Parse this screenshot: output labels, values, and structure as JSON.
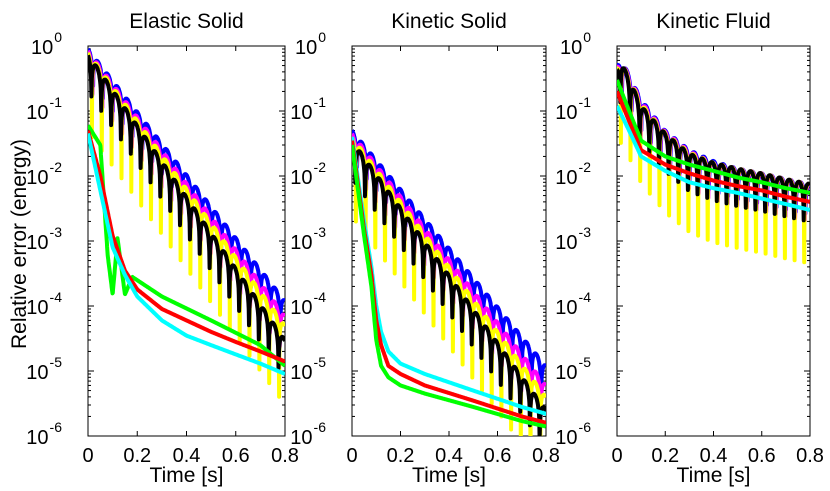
{
  "figure": {
    "ylabel": "Relative error (energy)",
    "xlabel": "Time [s]"
  },
  "chart_data": [
    {
      "type": "line",
      "title": "Elastic Solid",
      "xlabel": "Time [s]",
      "ylabel": "Relative error (energy)",
      "xlim": [
        0,
        0.8
      ],
      "ylim": [
        1e-06,
        1
      ],
      "yscale": "log",
      "xticks": [
        "0",
        "0.2",
        "0.4",
        "0.6",
        "0.8"
      ],
      "ytick_exponents": [
        "0",
        "-1",
        "-2",
        "-3",
        "-4",
        "-5",
        "-6"
      ],
      "grid": false,
      "series": [
        {
          "color": "#0000ff",
          "x": [
            0,
            0.8
          ],
          "y": [
            0.9,
            0.00012
          ],
          "oscillating": true
        },
        {
          "color": "#ff00ff",
          "x": [
            0,
            0.8
          ],
          "y": [
            0.85,
            7e-05
          ],
          "oscillating": true
        },
        {
          "color": "#ffff00",
          "x": [
            0,
            0.8
          ],
          "y": [
            0.8,
            5e-05
          ],
          "oscillating": true
        },
        {
          "color": "#000000",
          "x": [
            0,
            0.8
          ],
          "y": [
            0.75,
            3e-05
          ],
          "oscillating": true
        },
        {
          "color": "#00ff00",
          "x": [
            0,
            0.05,
            0.08,
            0.1,
            0.12,
            0.15,
            0.18,
            0.3,
            0.5,
            0.7,
            0.8
          ],
          "y": [
            0.06,
            0.03,
            0.0006,
            0.00015,
            0.0011,
            0.00015,
            0.00028,
            0.00014,
            6e-05,
            2.5e-05,
            1.2e-05
          ]
        },
        {
          "color": "#ff0000",
          "x": [
            0,
            0.05,
            0.1,
            0.15,
            0.2,
            0.3,
            0.4,
            0.5,
            0.6,
            0.7,
            0.8
          ],
          "y": [
            0.05,
            0.01,
            0.0012,
            0.00035,
            0.00018,
            9e-05,
            6e-05,
            4e-05,
            2.8e-05,
            2e-05,
            1.4e-05
          ]
        },
        {
          "color": "#00ffff",
          "x": [
            0,
            0.05,
            0.1,
            0.15,
            0.2,
            0.3,
            0.4,
            0.5,
            0.6,
            0.7,
            0.8
          ],
          "y": [
            0.045,
            0.006,
            0.0008,
            0.0003,
            0.00014,
            6e-05,
            3.5e-05,
            2.5e-05,
            1.8e-05,
            1.3e-05,
            9e-06
          ]
        }
      ]
    },
    {
      "type": "line",
      "title": "Kinetic Solid",
      "xlabel": "Time [s]",
      "xlim": [
        0,
        0.8
      ],
      "ylim": [
        1e-06,
        1
      ],
      "yscale": "log",
      "xticks": [
        "0",
        "0.2",
        "0.4",
        "0.6",
        "0.8"
      ],
      "ytick_exponents": [
        "0",
        "-1",
        "-2",
        "-3",
        "-4",
        "-5",
        "-6"
      ],
      "grid": false,
      "series": [
        {
          "color": "#0000ff",
          "x": [
            0,
            0.8
          ],
          "y": [
            0.05,
            1.2e-05
          ],
          "oscillating": true
        },
        {
          "color": "#ff00ff",
          "x": [
            0,
            0.8
          ],
          "y": [
            0.045,
            6e-06
          ],
          "oscillating": true
        },
        {
          "color": "#ffff00",
          "x": [
            0,
            0.8
          ],
          "y": [
            0.04,
            4e-06
          ],
          "oscillating": true
        },
        {
          "color": "#000000",
          "x": [
            0,
            0.8
          ],
          "y": [
            0.035,
            2.5e-06
          ],
          "oscillating": true
        },
        {
          "color": "#00ffff",
          "x": [
            0,
            0.05,
            0.08,
            0.1,
            0.12,
            0.15,
            0.2,
            0.3,
            0.5,
            0.7,
            0.8
          ],
          "y": [
            0.04,
            0.002,
            0.0004,
            0.0001,
            4e-05,
            2e-05,
            1.3e-05,
            9e-06,
            5e-06,
            2.8e-06,
            2.2e-06
          ]
        },
        {
          "color": "#ff0000",
          "x": [
            0,
            0.05,
            0.08,
            0.1,
            0.12,
            0.15,
            0.2,
            0.3,
            0.5,
            0.7,
            0.8
          ],
          "y": [
            0.035,
            0.0015,
            0.0003,
            6e-05,
            2.5e-05,
            1.2e-05,
            9e-06,
            6e-06,
            3.5e-06,
            2e-06,
            1.6e-06
          ]
        },
        {
          "color": "#00ff00",
          "x": [
            0,
            0.05,
            0.08,
            0.1,
            0.12,
            0.15,
            0.2,
            0.3,
            0.5,
            0.7,
            0.8
          ],
          "y": [
            0.03,
            0.0012,
            0.0002,
            3e-05,
            1.2e-05,
            8e-06,
            6e-06,
            4.5e-06,
            2.8e-06,
            1.7e-06,
            1.4e-06
          ]
        }
      ]
    },
    {
      "type": "line",
      "title": "Kinetic Fluid",
      "xlabel": "Time [s]",
      "xlim": [
        0,
        0.8
      ],
      "ylim": [
        1e-06,
        1
      ],
      "yscale": "log",
      "xticks": [
        "0",
        "0.2",
        "0.4",
        "0.6",
        "0.8"
      ],
      "ytick_exponents": [
        "0",
        "-1",
        "-2",
        "-3",
        "-4",
        "-5",
        "-6"
      ],
      "grid": false,
      "series": [
        {
          "color": "#0000ff",
          "x": [
            0,
            0.02,
            0.1,
            0.2,
            0.3,
            0.4,
            0.5,
            0.6,
            0.7,
            0.8
          ],
          "y": [
            0.5,
            0.6,
            0.15,
            0.05,
            0.025,
            0.017,
            0.013,
            0.011,
            0.009,
            0.0075
          ],
          "oscillating": true
        },
        {
          "color": "#ff00ff",
          "x": [
            0,
            0.02,
            0.1,
            0.2,
            0.3,
            0.4,
            0.5,
            0.6,
            0.7,
            0.8
          ],
          "y": [
            0.48,
            0.58,
            0.14,
            0.048,
            0.024,
            0.016,
            0.013,
            0.011,
            0.009,
            0.0075
          ],
          "oscillating": true
        },
        {
          "color": "#ffff00",
          "x": [
            0,
            0.02,
            0.1,
            0.2,
            0.3,
            0.4,
            0.5,
            0.6,
            0.7,
            0.8
          ],
          "y": [
            0.46,
            0.56,
            0.13,
            0.046,
            0.023,
            0.016,
            0.013,
            0.011,
            0.009,
            0.0075
          ],
          "oscillating": true
        },
        {
          "color": "#000000",
          "x": [
            0,
            0.02,
            0.1,
            0.2,
            0.3,
            0.4,
            0.5,
            0.6,
            0.7,
            0.8
          ],
          "y": [
            0.45,
            0.55,
            0.12,
            0.045,
            0.022,
            0.016,
            0.013,
            0.011,
            0.009,
            0.0075
          ],
          "oscillating": true
        },
        {
          "color": "#00ff00",
          "x": [
            0,
            0.05,
            0.1,
            0.2,
            0.3,
            0.4,
            0.5,
            0.6,
            0.7,
            0.8
          ],
          "y": [
            0.3,
            0.1,
            0.035,
            0.02,
            0.015,
            0.012,
            0.0095,
            0.008,
            0.0065,
            0.0055
          ]
        },
        {
          "color": "#ff0000",
          "x": [
            0,
            0.05,
            0.1,
            0.2,
            0.3,
            0.4,
            0.5,
            0.6,
            0.7,
            0.8
          ],
          "y": [
            0.2,
            0.07,
            0.025,
            0.015,
            0.011,
            0.0085,
            0.007,
            0.006,
            0.0048,
            0.004
          ]
        },
        {
          "color": "#00ffff",
          "x": [
            0,
            0.05,
            0.1,
            0.2,
            0.3,
            0.4,
            0.5,
            0.6,
            0.7,
            0.8
          ],
          "y": [
            0.12,
            0.05,
            0.02,
            0.012,
            0.008,
            0.0065,
            0.0055,
            0.0045,
            0.0037,
            0.003
          ]
        }
      ]
    }
  ]
}
